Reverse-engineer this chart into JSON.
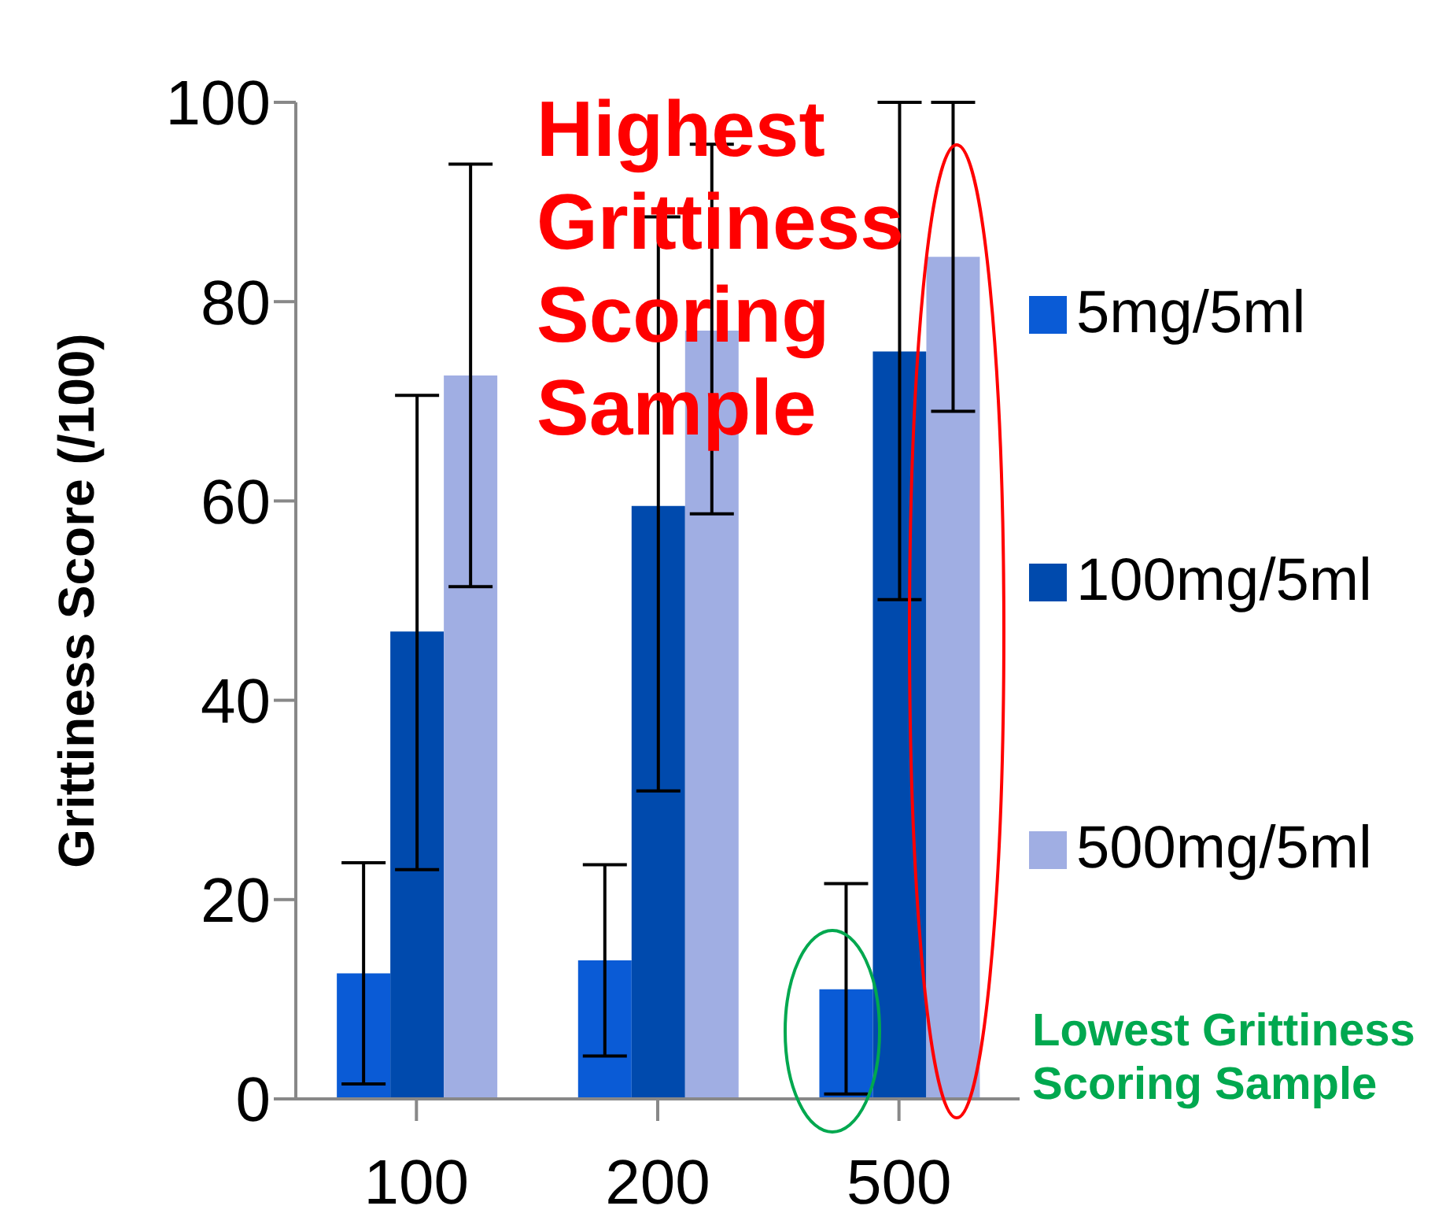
{
  "chart_data": {
    "type": "bar",
    "ylabel": "Grittiness Score  (/100)",
    "categories": [
      "100",
      "200",
      "500"
    ],
    "ylim": [
      0,
      100
    ],
    "yticks": [
      0,
      20,
      40,
      60,
      80,
      100
    ],
    "legend": "right",
    "series": [
      {
        "name": "5mg/5ml",
        "color": "#0a5bd6",
        "values": [
          12.6,
          13.9,
          11.0
        ],
        "errors": [
          [
            1.5,
            23.7
          ],
          [
            4.3,
            23.5
          ],
          [
            0.5,
            21.6
          ]
        ]
      },
      {
        "name": "100mg/5ml",
        "color": "#004aad",
        "values": [
          46.9,
          59.5,
          75.0
        ],
        "errors": [
          [
            23.0,
            70.6
          ],
          [
            30.9,
            88.5
          ],
          [
            50.1,
            100
          ]
        ]
      },
      {
        "name": "500mg/5ml",
        "color": "#a0aee3",
        "values": [
          72.6,
          77.1,
          84.5
        ],
        "errors": [
          [
            51.4,
            93.8
          ],
          [
            58.7,
            95.8
          ],
          [
            69.0,
            100
          ]
        ]
      }
    ],
    "annotations": [
      "Highest Grittiness Scoring Sample",
      "Lowest Grittiness Scoring Sample"
    ]
  }
}
